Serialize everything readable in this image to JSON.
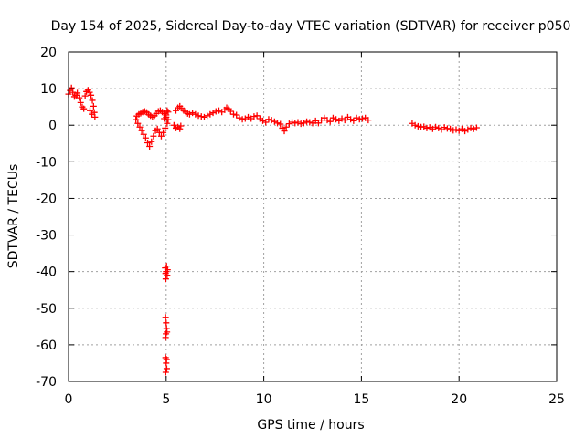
{
  "chart_data": {
    "type": "scatter",
    "title": "Day 154 of 2025, Sidereal Day-to-day VTEC variation (SDTVAR) for receiver p050",
    "xlabel": "GPS time / hours",
    "ylabel": "SDTVAR / TECUs",
    "xlim": [
      0,
      25
    ],
    "ylim": [
      -70,
      20
    ],
    "xticks": [
      0,
      5,
      10,
      15,
      20,
      25
    ],
    "yticks": [
      20,
      10,
      0,
      -10,
      -20,
      -30,
      -40,
      -50,
      -60,
      -70
    ],
    "grid": true,
    "marker": "+",
    "color": "#ff0000",
    "series": [
      {
        "name": "SDTVAR",
        "points": [
          [
            0.0,
            8.5
          ],
          [
            0.08,
            9.5
          ],
          [
            0.15,
            10.2
          ],
          [
            0.22,
            9.0
          ],
          [
            0.3,
            7.8
          ],
          [
            0.38,
            8.2
          ],
          [
            0.45,
            8.8
          ],
          [
            0.55,
            7.5
          ],
          [
            0.62,
            6.2
          ],
          [
            0.7,
            5.0
          ],
          [
            0.78,
            4.5
          ],
          [
            0.85,
            8.0
          ],
          [
            0.92,
            9.2
          ],
          [
            1.0,
            9.6
          ],
          [
            1.08,
            9.0
          ],
          [
            1.15,
            8.2
          ],
          [
            1.22,
            6.8
          ],
          [
            1.28,
            5.2
          ],
          [
            1.32,
            3.5
          ],
          [
            1.35,
            2.2
          ],
          [
            1.1,
            4.0
          ],
          [
            1.2,
            3.0
          ],
          [
            3.45,
            1.5
          ],
          [
            3.55,
            0.5
          ],
          [
            3.65,
            -0.5
          ],
          [
            3.75,
            -1.5
          ],
          [
            3.85,
            -2.5
          ],
          [
            3.95,
            -3.5
          ],
          [
            4.05,
            -4.8
          ],
          [
            4.15,
            -5.8
          ],
          [
            4.25,
            -4.5
          ],
          [
            4.35,
            -3.0
          ],
          [
            4.45,
            -1.5
          ],
          [
            4.55,
            -1.0
          ],
          [
            4.65,
            -2.0
          ],
          [
            4.75,
            -3.0
          ],
          [
            4.85,
            -2.0
          ],
          [
            4.95,
            -0.8
          ],
          [
            5.05,
            0.5
          ],
          [
            5.1,
            1.5
          ],
          [
            3.5,
            2.5
          ],
          [
            3.6,
            3.0
          ],
          [
            3.7,
            3.3
          ],
          [
            3.8,
            3.6
          ],
          [
            3.9,
            3.8
          ],
          [
            4.0,
            3.5
          ],
          [
            4.1,
            3.0
          ],
          [
            4.2,
            2.6
          ],
          [
            4.3,
            2.2
          ],
          [
            4.4,
            2.6
          ],
          [
            4.5,
            3.2
          ],
          [
            4.6,
            3.8
          ],
          [
            4.7,
            4.0
          ],
          [
            4.8,
            3.6
          ],
          [
            4.9,
            3.2
          ],
          [
            5.0,
            2.8
          ],
          [
            5.05,
            4.0
          ],
          [
            5.1,
            3.6
          ],
          [
            5.0,
            2.2
          ],
          [
            4.9,
            1.8
          ],
          [
            5.4,
            0.0
          ],
          [
            5.5,
            -0.8
          ],
          [
            5.6,
            -0.5
          ],
          [
            5.7,
            -1.0
          ],
          [
            5.75,
            -0.2
          ],
          [
            5.5,
            4.0
          ],
          [
            5.6,
            4.8
          ],
          [
            5.7,
            5.2
          ],
          [
            5.8,
            4.6
          ],
          [
            5.9,
            4.0
          ],
          [
            6.0,
            3.6
          ],
          [
            6.1,
            3.2
          ],
          [
            6.2,
            3.0
          ],
          [
            6.35,
            3.4
          ],
          [
            6.5,
            3.0
          ],
          [
            6.65,
            2.6
          ],
          [
            6.8,
            2.4
          ],
          [
            6.95,
            2.2
          ],
          [
            7.1,
            2.6
          ],
          [
            7.25,
            3.0
          ],
          [
            7.4,
            3.4
          ],
          [
            7.55,
            3.8
          ],
          [
            7.7,
            4.0
          ],
          [
            7.85,
            3.6
          ],
          [
            8.0,
            4.2
          ],
          [
            8.1,
            4.8
          ],
          [
            8.2,
            4.5
          ],
          [
            8.3,
            3.8
          ],
          [
            8.45,
            3.0
          ],
          [
            8.6,
            2.8
          ],
          [
            8.75,
            2.0
          ],
          [
            8.9,
            1.6
          ],
          [
            9.05,
            1.8
          ],
          [
            9.2,
            2.2
          ],
          [
            9.35,
            1.8
          ],
          [
            9.5,
            2.4
          ],
          [
            9.65,
            2.6
          ],
          [
            9.8,
            1.8
          ],
          [
            9.95,
            1.2
          ],
          [
            10.1,
            0.8
          ],
          [
            10.25,
            1.6
          ],
          [
            10.4,
            1.4
          ],
          [
            10.55,
            1.0
          ],
          [
            10.7,
            0.6
          ],
          [
            10.85,
            0.3
          ],
          [
            10.95,
            -0.8
          ],
          [
            11.05,
            -1.6
          ],
          [
            11.15,
            -0.5
          ],
          [
            11.3,
            0.4
          ],
          [
            11.45,
            0.8
          ],
          [
            11.6,
            0.6
          ],
          [
            11.75,
            0.8
          ],
          [
            11.9,
            0.4
          ],
          [
            12.05,
            0.6
          ],
          [
            12.2,
            1.0
          ],
          [
            12.35,
            0.8
          ],
          [
            12.5,
            0.6
          ],
          [
            12.65,
            1.2
          ],
          [
            12.8,
            0.6
          ],
          [
            12.95,
            1.4
          ],
          [
            13.1,
            2.0
          ],
          [
            13.25,
            1.4
          ],
          [
            13.4,
            1.0
          ],
          [
            13.55,
            2.0
          ],
          [
            13.7,
            1.6
          ],
          [
            13.85,
            1.2
          ],
          [
            14.0,
            1.8
          ],
          [
            14.15,
            1.4
          ],
          [
            14.3,
            2.2
          ],
          [
            14.45,
            1.6
          ],
          [
            14.6,
            1.2
          ],
          [
            14.75,
            2.0
          ],
          [
            14.9,
            1.6
          ],
          [
            15.05,
            1.8
          ],
          [
            15.2,
            2.0
          ],
          [
            15.35,
            1.4
          ],
          [
            4.95,
            -39.0
          ],
          [
            5.0,
            -40.0
          ],
          [
            5.05,
            -41.0
          ],
          [
            4.98,
            -42.0
          ],
          [
            5.02,
            -38.5
          ],
          [
            4.97,
            -40.5
          ],
          [
            5.07,
            -39.5
          ],
          [
            4.97,
            -52.5
          ],
          [
            5.0,
            -54.0
          ],
          [
            5.02,
            -55.5
          ],
          [
            4.99,
            -57.0
          ],
          [
            4.97,
            -58.0
          ],
          [
            5.04,
            -56.5
          ],
          [
            4.97,
            -63.5
          ],
          [
            5.0,
            -65.0
          ],
          [
            5.03,
            -66.5
          ],
          [
            4.98,
            -67.5
          ],
          [
            5.02,
            -64.0
          ],
          [
            17.6,
            0.5
          ],
          [
            17.75,
            0.0
          ],
          [
            17.9,
            -0.3
          ],
          [
            18.05,
            -0.5
          ],
          [
            18.2,
            -0.4
          ],
          [
            18.35,
            -0.8
          ],
          [
            18.5,
            -0.6
          ],
          [
            18.65,
            -1.0
          ],
          [
            18.8,
            -0.5
          ],
          [
            18.95,
            -0.8
          ],
          [
            19.1,
            -1.2
          ],
          [
            19.25,
            -0.6
          ],
          [
            19.4,
            -0.9
          ],
          [
            19.55,
            -1.0
          ],
          [
            19.7,
            -1.4
          ],
          [
            19.85,
            -1.2
          ],
          [
            20.0,
            -1.5
          ],
          [
            20.15,
            -1.0
          ],
          [
            20.3,
            -1.6
          ],
          [
            20.45,
            -1.2
          ],
          [
            20.6,
            -0.8
          ],
          [
            20.75,
            -1.0
          ],
          [
            20.9,
            -0.7
          ]
        ]
      }
    ]
  }
}
